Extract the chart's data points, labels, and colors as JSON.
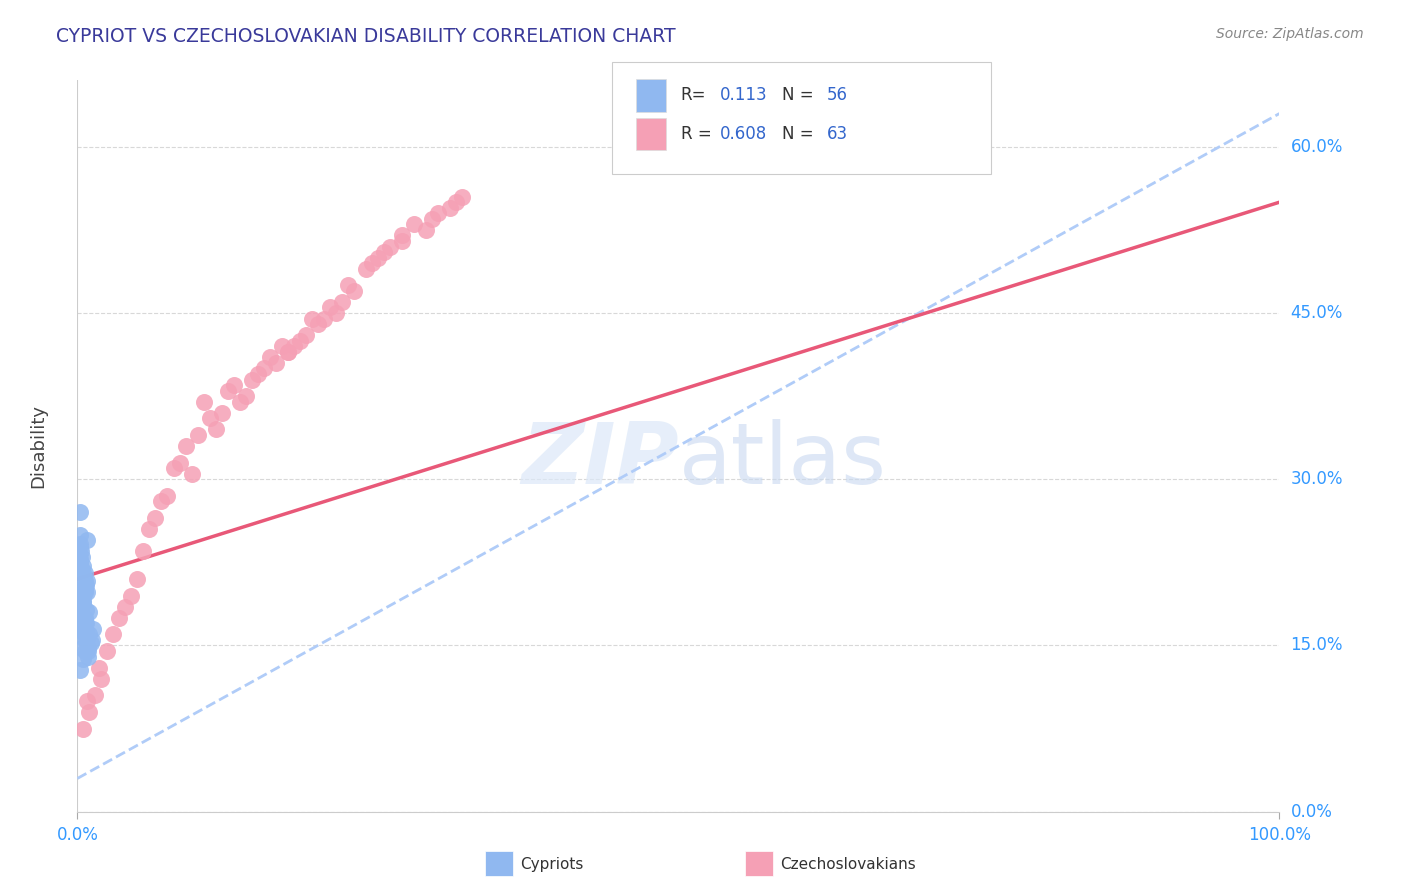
{
  "title": "CYPRIOT VS CZECHOSLOVAKIAN DISABILITY CORRELATION CHART",
  "source": "Source: ZipAtlas.com",
  "ylabel": "Disability",
  "xlim": [
    0.0,
    1.0
  ],
  "ylim": [
    0.0,
    0.66
  ],
  "yticks": [
    0.0,
    0.15,
    0.3,
    0.45,
    0.6
  ],
  "ytick_labels": [
    "0.0%",
    "15.0%",
    "30.0%",
    "45.0%",
    "60.0%"
  ],
  "xtick_labels": [
    "0.0%",
    "100.0%"
  ],
  "title_color": "#3a3a9a",
  "blue_color": "#90b8f0",
  "pink_color": "#f5a0b5",
  "blue_line_color": "#b0ccf8",
  "pink_line_color": "#e85878",
  "grid_color": "#d8d8d8",
  "tick_color": "#3399ff",
  "watermark_color": "#dce8f8",
  "R_cypriot": 0.113,
  "N_cypriot": 56,
  "R_czech": 0.608,
  "N_czech": 63,
  "cypriot_x": [
    0.004,
    0.008,
    0.002,
    0.006,
    0.003,
    0.01,
    0.005,
    0.004,
    0.012,
    0.002,
    0.007,
    0.005,
    0.003,
    0.002,
    0.009,
    0.006,
    0.008,
    0.004,
    0.005,
    0.002,
    0.011,
    0.003,
    0.006,
    0.007,
    0.001,
    0.004,
    0.009,
    0.005,
    0.003,
    0.007,
    0.002,
    0.005,
    0.004,
    0.01,
    0.008,
    0.006,
    0.003,
    0.002,
    0.013,
    0.005,
    0.004,
    0.008,
    0.006,
    0.002,
    0.009,
    0.003,
    0.006,
    0.007,
    0.004,
    0.002,
    0.005,
    0.003,
    0.007,
    0.002,
    0.006,
    0.004
  ],
  "cypriot_y": [
    0.2,
    0.245,
    0.185,
    0.145,
    0.22,
    0.16,
    0.195,
    0.23,
    0.155,
    0.27,
    0.17,
    0.215,
    0.188,
    0.225,
    0.148,
    0.175,
    0.208,
    0.192,
    0.222,
    0.25,
    0.152,
    0.168,
    0.2,
    0.182,
    0.218,
    0.158,
    0.14,
    0.19,
    0.172,
    0.205,
    0.242,
    0.162,
    0.148,
    0.18,
    0.198,
    0.215,
    0.235,
    0.128,
    0.165,
    0.188,
    0.205,
    0.158,
    0.172,
    0.228,
    0.145,
    0.182,
    0.198,
    0.162,
    0.218,
    0.238,
    0.138,
    0.192,
    0.155,
    0.175,
    0.208,
    0.165
  ],
  "czech_x": [
    0.03,
    0.055,
    0.08,
    0.105,
    0.13,
    0.155,
    0.18,
    0.21,
    0.24,
    0.27,
    0.05,
    0.07,
    0.09,
    0.12,
    0.15,
    0.175,
    0.2,
    0.23,
    0.01,
    0.025,
    0.065,
    0.095,
    0.115,
    0.14,
    0.165,
    0.19,
    0.22,
    0.25,
    0.04,
    0.075,
    0.1,
    0.135,
    0.16,
    0.185,
    0.215,
    0.245,
    0.02,
    0.06,
    0.085,
    0.11,
    0.145,
    0.17,
    0.195,
    0.225,
    0.015,
    0.045,
    0.125,
    0.28,
    0.035,
    0.005,
    0.175,
    0.205,
    0.255,
    0.3,
    0.26,
    0.29,
    0.31,
    0.32,
    0.008,
    0.018,
    0.27,
    0.295,
    0.315
  ],
  "czech_y": [
    0.16,
    0.235,
    0.31,
    0.37,
    0.385,
    0.4,
    0.42,
    0.455,
    0.49,
    0.515,
    0.21,
    0.28,
    0.33,
    0.36,
    0.395,
    0.415,
    0.44,
    0.47,
    0.09,
    0.145,
    0.265,
    0.305,
    0.345,
    0.375,
    0.405,
    0.43,
    0.46,
    0.5,
    0.185,
    0.285,
    0.34,
    0.37,
    0.41,
    0.425,
    0.45,
    0.495,
    0.12,
    0.255,
    0.315,
    0.355,
    0.39,
    0.42,
    0.445,
    0.475,
    0.105,
    0.195,
    0.38,
    0.53,
    0.175,
    0.075,
    0.415,
    0.445,
    0.505,
    0.54,
    0.51,
    0.525,
    0.545,
    0.555,
    0.1,
    0.13,
    0.52,
    0.535,
    0.55
  ],
  "czech_line_x0": 0.0,
  "czech_line_x1": 1.0,
  "czech_line_y0": 0.21,
  "czech_line_y1": 0.55,
  "blue_line_x0": 0.0,
  "blue_line_x1": 1.0,
  "blue_line_y0": 0.03,
  "blue_line_y1": 0.63
}
